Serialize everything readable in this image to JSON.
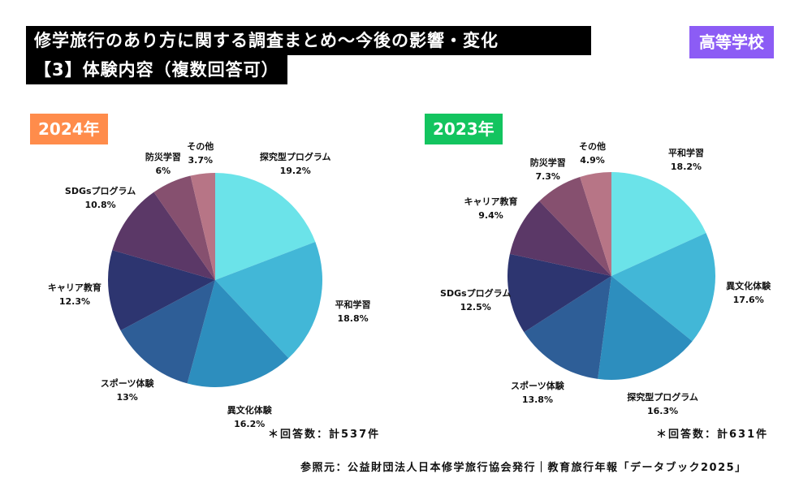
{
  "title_line1": "修学旅行のあり方に関する調査まとめ〜今後の影響・変化",
  "title_line2": "【3】体験内容（複数回答可）",
  "badge": "高等学校",
  "source": "参照元：公益財団法人日本修学旅行協会発行｜教育旅行年報「データブック2025」",
  "chart_data": [
    {
      "type": "pie",
      "title": "2024年",
      "note": "＊回答数：計537件",
      "categories": [
        "探究型プログラム",
        "平和学習",
        "異文化体験",
        "スポーツ体験",
        "キャリア教育",
        "SDGsプログラム",
        "防災学習",
        "その他"
      ],
      "values": [
        19.2,
        18.8,
        16.2,
        13,
        12.3,
        10.8,
        6,
        3.7
      ],
      "value_labels": [
        "19.2%",
        "18.8%",
        "16.2%",
        "13%",
        "12.3%",
        "10.8%",
        "6%",
        "3.7%"
      ],
      "colors": [
        "#6be3e9",
        "#42b7d7",
        "#2d8ebe",
        "#2e5e97",
        "#2d3570",
        "#5b3867",
        "#86506f",
        "#b77586"
      ]
    },
    {
      "type": "pie",
      "title": "2023年",
      "note": "＊回答数：計631件",
      "categories": [
        "平和学習",
        "異文化体験",
        "探究型プログラム",
        "スポーツ体験",
        "SDGsプログラム",
        "キャリア教育",
        "防災学習",
        "その他"
      ],
      "values": [
        18.2,
        17.6,
        16.3,
        13.8,
        12.5,
        9.4,
        7.3,
        4.9
      ],
      "value_labels": [
        "18.2%",
        "17.6%",
        "16.3%",
        "13.8%",
        "12.5%",
        "9.4%",
        "7.3%",
        "4.9%"
      ],
      "colors": [
        "#6be3e9",
        "#42b7d7",
        "#2d8ebe",
        "#2e5e97",
        "#2d3570",
        "#5b3867",
        "#86506f",
        "#b77586"
      ]
    }
  ]
}
